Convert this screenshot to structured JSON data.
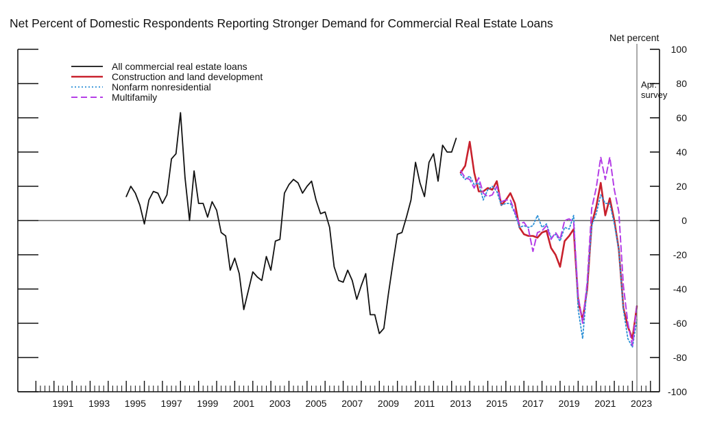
{
  "chart_data": {
    "type": "line",
    "title": "Net Percent of Domestic Respondents Reporting Stronger Demand for Commercial Real Estate Loans",
    "ylabel": "Net percent",
    "ylim": [
      -100,
      100
    ],
    "yticks": [
      100,
      80,
      60,
      40,
      20,
      0,
      -20,
      -40,
      -60,
      -80,
      -100
    ],
    "xlim": [
      1989.0,
      2024.5
    ],
    "xtick_labels": [
      "1991",
      "1993",
      "1995",
      "1997",
      "1999",
      "2001",
      "2003",
      "2005",
      "2007",
      "2009",
      "2011",
      "2013",
      "2015",
      "2017",
      "2019",
      "2021",
      "2023"
    ],
    "annotation": {
      "label_line1": "Apr.",
      "label_line2": "survey",
      "x": 2023.25
    },
    "legend_position": "top-left",
    "series": [
      {
        "name": "All commercial real estate loans",
        "color": "#111111",
        "style": "solid",
        "points": [
          [
            1995.0,
            14
          ],
          [
            1995.25,
            20
          ],
          [
            1995.5,
            16
          ],
          [
            1995.75,
            9
          ],
          [
            1996.0,
            -2
          ],
          [
            1996.25,
            12
          ],
          [
            1996.5,
            17
          ],
          [
            1996.75,
            16
          ],
          [
            1997.0,
            10
          ],
          [
            1997.25,
            15
          ],
          [
            1997.5,
            36
          ],
          [
            1997.75,
            39
          ],
          [
            1998.0,
            63
          ],
          [
            1998.25,
            25
          ],
          [
            1998.5,
            0
          ],
          [
            1998.75,
            29
          ],
          [
            1999.0,
            10
          ],
          [
            1999.25,
            10
          ],
          [
            1999.5,
            2
          ],
          [
            1999.75,
            11
          ],
          [
            2000.0,
            6
          ],
          [
            2000.25,
            -7
          ],
          [
            2000.5,
            -9
          ],
          [
            2000.75,
            -29
          ],
          [
            2001.0,
            -22
          ],
          [
            2001.25,
            -31
          ],
          [
            2001.5,
            -52
          ],
          [
            2001.75,
            -41
          ],
          [
            2002.0,
            -30
          ],
          [
            2002.25,
            -33
          ],
          [
            2002.5,
            -35
          ],
          [
            2002.75,
            -21
          ],
          [
            2003.0,
            -29
          ],
          [
            2003.25,
            -12
          ],
          [
            2003.5,
            -11
          ],
          [
            2003.75,
            16
          ],
          [
            2004.0,
            21
          ],
          [
            2004.25,
            24
          ],
          [
            2004.5,
            22
          ],
          [
            2004.75,
            16
          ],
          [
            2005.0,
            20
          ],
          [
            2005.25,
            23
          ],
          [
            2005.5,
            12
          ],
          [
            2005.75,
            4
          ],
          [
            2006.0,
            5
          ],
          [
            2006.25,
            -4
          ],
          [
            2006.5,
            -27
          ],
          [
            2006.75,
            -35
          ],
          [
            2007.0,
            -36
          ],
          [
            2007.25,
            -29
          ],
          [
            2007.5,
            -35
          ],
          [
            2007.75,
            -46
          ],
          [
            2008.0,
            -38
          ],
          [
            2008.25,
            -31
          ],
          [
            2008.5,
            -55
          ],
          [
            2008.75,
            -55
          ],
          [
            2009.0,
            -66
          ],
          [
            2009.25,
            -63
          ],
          [
            2009.5,
            -43
          ],
          [
            2009.75,
            -25
          ],
          [
            2010.0,
            -8
          ],
          [
            2010.25,
            -7
          ],
          [
            2010.5,
            2
          ],
          [
            2010.75,
            12
          ],
          [
            2011.0,
            34
          ],
          [
            2011.25,
            22
          ],
          [
            2011.5,
            14
          ],
          [
            2011.75,
            34
          ],
          [
            2012.0,
            39
          ],
          [
            2012.25,
            23
          ],
          [
            2012.5,
            44
          ],
          [
            2012.75,
            40
          ],
          [
            2013.0,
            40
          ],
          [
            2013.25,
            48
          ]
        ]
      },
      {
        "name": "Construction and land development",
        "color": "#c8202c",
        "style": "solid",
        "points": [
          [
            2013.5,
            28
          ],
          [
            2013.75,
            32
          ],
          [
            2014.0,
            46
          ],
          [
            2014.25,
            28
          ],
          [
            2014.5,
            17
          ],
          [
            2014.75,
            17
          ],
          [
            2015.0,
            19
          ],
          [
            2015.25,
            18
          ],
          [
            2015.5,
            23
          ],
          [
            2015.75,
            9
          ],
          [
            2016.0,
            12
          ],
          [
            2016.25,
            16
          ],
          [
            2016.5,
            10
          ],
          [
            2016.75,
            -4
          ],
          [
            2017.0,
            -8
          ],
          [
            2017.25,
            -9
          ],
          [
            2017.5,
            -9
          ],
          [
            2017.75,
            -10
          ],
          [
            2018.0,
            -7
          ],
          [
            2018.25,
            -6
          ],
          [
            2018.5,
            -16
          ],
          [
            2018.75,
            -20
          ],
          [
            2019.0,
            -27
          ],
          [
            2019.25,
            -12
          ],
          [
            2019.5,
            -9
          ],
          [
            2019.75,
            -5
          ],
          [
            2020.0,
            -47
          ],
          [
            2020.25,
            -58
          ],
          [
            2020.5,
            -40
          ],
          [
            2020.75,
            -2
          ],
          [
            2021.0,
            8
          ],
          [
            2021.25,
            22
          ],
          [
            2021.5,
            3
          ],
          [
            2021.75,
            13
          ],
          [
            2022.0,
            0
          ],
          [
            2022.25,
            -17
          ],
          [
            2022.5,
            -51
          ],
          [
            2022.75,
            -62
          ],
          [
            2023.0,
            -69
          ],
          [
            2023.25,
            -50
          ]
        ]
      },
      {
        "name": "Nonfarm nonresidential",
        "color": "#2a8fd6",
        "style": "dotted",
        "points": [
          [
            2013.5,
            27
          ],
          [
            2013.75,
            24
          ],
          [
            2014.0,
            26
          ],
          [
            2014.25,
            21
          ],
          [
            2014.5,
            22
          ],
          [
            2014.75,
            12
          ],
          [
            2015.0,
            18
          ],
          [
            2015.25,
            20
          ],
          [
            2015.5,
            17
          ],
          [
            2015.75,
            9
          ],
          [
            2016.0,
            10
          ],
          [
            2016.25,
            10
          ],
          [
            2016.5,
            4
          ],
          [
            2016.75,
            -4
          ],
          [
            2017.0,
            -3
          ],
          [
            2017.25,
            -4
          ],
          [
            2017.5,
            -3
          ],
          [
            2017.75,
            3
          ],
          [
            2018.0,
            -4
          ],
          [
            2018.25,
            -2
          ],
          [
            2018.5,
            -10
          ],
          [
            2018.75,
            -8
          ],
          [
            2019.0,
            -12
          ],
          [
            2019.25,
            -4
          ],
          [
            2019.5,
            -5
          ],
          [
            2019.75,
            3
          ],
          [
            2020.0,
            -52
          ],
          [
            2020.25,
            -69
          ],
          [
            2020.5,
            -38
          ],
          [
            2020.75,
            -3
          ],
          [
            2021.0,
            4
          ],
          [
            2021.25,
            15
          ],
          [
            2021.5,
            10
          ],
          [
            2021.75,
            10
          ],
          [
            2022.0,
            -2
          ],
          [
            2022.25,
            -17
          ],
          [
            2022.5,
            -52
          ],
          [
            2022.75,
            -69
          ],
          [
            2023.0,
            -74
          ],
          [
            2023.25,
            -58
          ]
        ]
      },
      {
        "name": "Multifamily",
        "color": "#b43de6",
        "style": "dashed",
        "points": [
          [
            2013.5,
            29
          ],
          [
            2013.75,
            25
          ],
          [
            2014.0,
            24
          ],
          [
            2014.25,
            19
          ],
          [
            2014.5,
            25
          ],
          [
            2014.75,
            16
          ],
          [
            2015.0,
            14
          ],
          [
            2015.25,
            15
          ],
          [
            2015.5,
            20
          ],
          [
            2015.75,
            11
          ],
          [
            2016.0,
            12
          ],
          [
            2016.25,
            12
          ],
          [
            2016.5,
            5
          ],
          [
            2016.75,
            -2
          ],
          [
            2017.0,
            -1
          ],
          [
            2017.25,
            -5
          ],
          [
            2017.5,
            -18
          ],
          [
            2017.75,
            -7
          ],
          [
            2018.0,
            -6
          ],
          [
            2018.25,
            -3
          ],
          [
            2018.5,
            -11
          ],
          [
            2018.75,
            -7
          ],
          [
            2019.0,
            -11
          ],
          [
            2019.25,
            0
          ],
          [
            2019.5,
            1
          ],
          [
            2019.75,
            -1
          ],
          [
            2020.0,
            -44
          ],
          [
            2020.25,
            -60
          ],
          [
            2020.5,
            -36
          ],
          [
            2020.75,
            7
          ],
          [
            2021.0,
            19
          ],
          [
            2021.25,
            37
          ],
          [
            2021.5,
            24
          ],
          [
            2021.75,
            37
          ],
          [
            2022.0,
            18
          ],
          [
            2022.25,
            5
          ],
          [
            2022.5,
            -38
          ],
          [
            2022.75,
            -60
          ],
          [
            2023.0,
            -73
          ],
          [
            2023.25,
            -49
          ]
        ]
      }
    ]
  }
}
